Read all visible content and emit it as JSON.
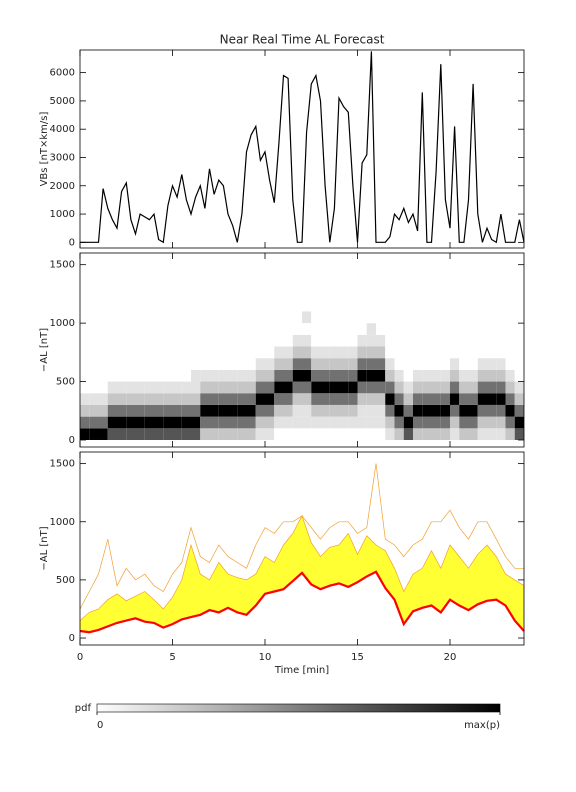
{
  "chart_data": [
    {
      "type": "line",
      "title": "Near Real Time AL Forecast",
      "ylabel": "VBs [nT×km/s]",
      "color": "#000000",
      "ylim": [
        -200,
        6800
      ],
      "yticks": [
        0,
        1000,
        2000,
        3000,
        4000,
        5000,
        6000
      ],
      "x": [
        0,
        0.25,
        0.5,
        0.75,
        1,
        1.25,
        1.5,
        1.75,
        2,
        2.25,
        2.5,
        2.75,
        3,
        3.25,
        3.5,
        3.75,
        4,
        4.25,
        4.5,
        4.75,
        5,
        5.25,
        5.5,
        5.75,
        6,
        6.25,
        6.5,
        6.75,
        7,
        7.25,
        7.5,
        7.75,
        8,
        8.25,
        8.5,
        8.75,
        9,
        9.25,
        9.5,
        9.75,
        10,
        10.25,
        10.5,
        10.75,
        11,
        11.25,
        11.5,
        11.75,
        12,
        12.25,
        12.5,
        12.75,
        13,
        13.25,
        13.5,
        13.75,
        14,
        14.25,
        14.5,
        14.75,
        15,
        15.25,
        15.5,
        15.75,
        16,
        16.25,
        16.5,
        16.75,
        17,
        17.25,
        17.5,
        17.75,
        18,
        18.25,
        18.5,
        18.75,
        19,
        19.25,
        19.5,
        19.75,
        20,
        20.25,
        20.5,
        20.75,
        21,
        21.25,
        21.5,
        21.75,
        22,
        22.25,
        22.5,
        22.75,
        23,
        23.25,
        23.5,
        23.75,
        24
      ],
      "values": [
        0,
        0,
        0,
        0,
        0,
        1900,
        1200,
        800,
        500,
        1800,
        2100,
        800,
        300,
        1000,
        900,
        800,
        1000,
        100,
        0,
        1300,
        2000,
        1600,
        2400,
        1500,
        1000,
        1600,
        2000,
        1200,
        2600,
        1700,
        2200,
        2000,
        1000,
        600,
        0,
        1000,
        3200,
        3800,
        4100,
        2900,
        3200,
        2200,
        1400,
        3500,
        5900,
        5800,
        1500,
        0,
        0,
        3900,
        5600,
        5900,
        5000,
        2000,
        0,
        1200,
        5100,
        4800,
        4600,
        2000,
        0,
        2800,
        3100,
        6750,
        0,
        0,
        0,
        200,
        1000,
        800,
        1200,
        700,
        1000,
        400,
        5300,
        0,
        0,
        2500,
        6300,
        1500,
        500,
        4100,
        0,
        0,
        1500,
        5600,
        1000,
        0,
        500,
        100,
        0,
        1000,
        0,
        0,
        0,
        800,
        0
      ]
    },
    {
      "type": "heatmap",
      "ylabel": "−AL [nT]",
      "ylim": [
        -60,
        1600
      ],
      "yticks": [
        0,
        500,
        1000,
        1500
      ],
      "xbins": [
        0,
        0.5,
        1,
        1.5,
        2,
        2.5,
        3,
        3.5,
        4,
        4.5,
        5,
        5.5,
        6,
        6.5,
        7,
        7.5,
        8,
        8.5,
        9,
        9.5,
        10,
        10.5,
        11,
        11.5,
        12,
        12.5,
        13,
        13.5,
        14,
        14.5,
        15,
        15.5,
        16,
        16.5,
        17,
        17.5,
        18,
        18.5,
        19,
        19.5,
        20,
        20.5,
        21,
        21.5,
        22,
        22.5,
        23,
        23.5,
        24
      ],
      "ybins": [
        0,
        100,
        200,
        300,
        400,
        500,
        600,
        700,
        800,
        900,
        1000,
        1100
      ],
      "z": [
        [
          9,
          5,
          2,
          1,
          0,
          0,
          0,
          0,
          0,
          0,
          0
        ],
        [
          9,
          5,
          2,
          1,
          0,
          0,
          0,
          0,
          0,
          0,
          0
        ],
        [
          9,
          5,
          2,
          1,
          0,
          0,
          0,
          0,
          0,
          0,
          0
        ],
        [
          6,
          9,
          5,
          2,
          1,
          0,
          0,
          0,
          0,
          0,
          0
        ],
        [
          6,
          9,
          5,
          2,
          1,
          0,
          0,
          0,
          0,
          0,
          0
        ],
        [
          6,
          9,
          5,
          2,
          1,
          0,
          0,
          0,
          0,
          0,
          0
        ],
        [
          6,
          9,
          5,
          2,
          1,
          0,
          0,
          0,
          0,
          0,
          0
        ],
        [
          6,
          9,
          5,
          2,
          1,
          0,
          0,
          0,
          0,
          0,
          0
        ],
        [
          6,
          9,
          5,
          2,
          1,
          0,
          0,
          0,
          0,
          0,
          0
        ],
        [
          6,
          9,
          5,
          2,
          1,
          0,
          0,
          0,
          0,
          0,
          0
        ],
        [
          6,
          9,
          5,
          2,
          1,
          0,
          0,
          0,
          0,
          0,
          0
        ],
        [
          6,
          9,
          5,
          2,
          1,
          0,
          0,
          0,
          0,
          0,
          0
        ],
        [
          6,
          9,
          5,
          2,
          1,
          1,
          0,
          0,
          0,
          0,
          0
        ],
        [
          2,
          5,
          9,
          5,
          2,
          1,
          0,
          0,
          0,
          0,
          0
        ],
        [
          2,
          5,
          9,
          5,
          2,
          1,
          0,
          0,
          0,
          0,
          0
        ],
        [
          2,
          5,
          9,
          5,
          2,
          1,
          0,
          0,
          0,
          0,
          0
        ],
        [
          2,
          5,
          9,
          5,
          2,
          1,
          0,
          0,
          0,
          0,
          0
        ],
        [
          2,
          5,
          9,
          5,
          2,
          1,
          0,
          0,
          0,
          0,
          0
        ],
        [
          2,
          5,
          9,
          5,
          2,
          1,
          0,
          0,
          0,
          0,
          0
        ],
        [
          1,
          2,
          5,
          9,
          5,
          2,
          1,
          0,
          0,
          0,
          0
        ],
        [
          1,
          2,
          5,
          9,
          5,
          2,
          1,
          0,
          0,
          0,
          0
        ],
        [
          0,
          1,
          2,
          5,
          9,
          5,
          2,
          1,
          0,
          0,
          0
        ],
        [
          0,
          1,
          2,
          5,
          9,
          5,
          2,
          1,
          0,
          0,
          0
        ],
        [
          0,
          1,
          1,
          2,
          5,
          9,
          5,
          2,
          1,
          0,
          0
        ],
        [
          0,
          1,
          1,
          2,
          5,
          9,
          5,
          2,
          1,
          0,
          1
        ],
        [
          0,
          1,
          2,
          5,
          9,
          5,
          2,
          1,
          0,
          0,
          0
        ],
        [
          0,
          1,
          2,
          5,
          9,
          5,
          2,
          1,
          0,
          0,
          0
        ],
        [
          0,
          1,
          2,
          5,
          9,
          5,
          2,
          1,
          0,
          0,
          0
        ],
        [
          0,
          1,
          2,
          5,
          9,
          5,
          2,
          1,
          0,
          0,
          0
        ],
        [
          0,
          1,
          2,
          5,
          9,
          5,
          2,
          1,
          0,
          0,
          0
        ],
        [
          0,
          1,
          1,
          2,
          5,
          9,
          5,
          2,
          1,
          0,
          0
        ],
        [
          0,
          1,
          1,
          2,
          5,
          9,
          5,
          2,
          1,
          1,
          0
        ],
        [
          0,
          1,
          1,
          2,
          5,
          9,
          5,
          2,
          1,
          0,
          0
        ],
        [
          1,
          2,
          5,
          9,
          5,
          2,
          1,
          0,
          0,
          0,
          0
        ],
        [
          2,
          5,
          9,
          5,
          2,
          1,
          0,
          0,
          0,
          0,
          0
        ],
        [
          6,
          9,
          5,
          2,
          1,
          0,
          0,
          0,
          0,
          0,
          0
        ],
        [
          2,
          5,
          9,
          5,
          2,
          1,
          0,
          0,
          0,
          0,
          0
        ],
        [
          2,
          5,
          9,
          5,
          2,
          1,
          0,
          0,
          0,
          0,
          0
        ],
        [
          2,
          5,
          9,
          5,
          2,
          1,
          0,
          0,
          0,
          0,
          0
        ],
        [
          2,
          5,
          9,
          5,
          2,
          1,
          0,
          0,
          0,
          0,
          0
        ],
        [
          1,
          2,
          5,
          9,
          5,
          2,
          1,
          0,
          0,
          0,
          0
        ],
        [
          2,
          5,
          9,
          5,
          2,
          1,
          0,
          0,
          0,
          0,
          0
        ],
        [
          2,
          5,
          9,
          5,
          2,
          1,
          0,
          0,
          0,
          0,
          0
        ],
        [
          1,
          2,
          5,
          9,
          5,
          2,
          1,
          0,
          0,
          0,
          0
        ],
        [
          1,
          2,
          5,
          9,
          5,
          2,
          1,
          0,
          0,
          0,
          0
        ],
        [
          1,
          2,
          5,
          9,
          5,
          2,
          1,
          0,
          0,
          0,
          0
        ],
        [
          2,
          5,
          9,
          5,
          2,
          1,
          0,
          0,
          0,
          0,
          0
        ],
        [
          6,
          9,
          5,
          2,
          1,
          0,
          0,
          0,
          0,
          0,
          0
        ]
      ],
      "colorbar": {
        "label": "pdf",
        "ticks": [
          0,
          {
            "value": 9,
            "label": "max(p)"
          }
        ]
      }
    },
    {
      "type": "band",
      "ylabel": "−AL [nT]",
      "xlabel": "Time [min]",
      "ylim": [
        -60,
        1600
      ],
      "yticks": [
        0,
        500,
        1000,
        1500
      ],
      "xlim": [
        0,
        24
      ],
      "xticks": [
        0,
        5,
        10,
        15,
        20
      ],
      "x": [
        0,
        0.5,
        1,
        1.5,
        2,
        2.5,
        3,
        3.5,
        4,
        4.5,
        5,
        5.5,
        6,
        6.5,
        7,
        7.5,
        8,
        8.5,
        9,
        9.5,
        10,
        10.5,
        11,
        11.5,
        12,
        12.5,
        13,
        13.5,
        14,
        14.5,
        15,
        15.5,
        16,
        16.5,
        17,
        17.5,
        18,
        18.5,
        19,
        19.5,
        20,
        20.5,
        21,
        21.5,
        22,
        22.5,
        23,
        23.5,
        24
      ],
      "series": [
        {
          "color": "#f0a030",
          "values": [
            250,
            400,
            550,
            850,
            450,
            600,
            500,
            550,
            450,
            400,
            550,
            650,
            950,
            700,
            650,
            800,
            700,
            650,
            600,
            800,
            950,
            900,
            1000,
            1000,
            1050,
            950,
            850,
            950,
            1000,
            1000,
            900,
            950,
            1500,
            850,
            800,
            700,
            800,
            850,
            1000,
            1000,
            1100,
            950,
            850,
            1000,
            1000,
            850,
            700,
            600,
            600
          ]
        },
        {
          "color": "#ffff33",
          "fill": true,
          "values": [
            150,
            220,
            250,
            330,
            380,
            320,
            360,
            400,
            330,
            250,
            350,
            500,
            800,
            550,
            500,
            650,
            550,
            520,
            500,
            550,
            700,
            650,
            800,
            900,
            1050,
            820,
            700,
            780,
            800,
            900,
            720,
            880,
            800,
            750,
            600,
            400,
            550,
            600,
            750,
            600,
            800,
            700,
            600,
            720,
            800,
            700,
            550,
            500,
            450
          ]
        },
        {
          "color": "#ff0000",
          "values": [
            60,
            50,
            70,
            100,
            130,
            150,
            170,
            140,
            130,
            90,
            120,
            160,
            180,
            200,
            240,
            220,
            260,
            220,
            200,
            280,
            380,
            400,
            420,
            490,
            560,
            460,
            420,
            450,
            470,
            440,
            480,
            530,
            570,
            430,
            330,
            120,
            230,
            260,
            280,
            220,
            330,
            280,
            240,
            290,
            320,
            330,
            280,
            150,
            60
          ]
        }
      ]
    }
  ]
}
